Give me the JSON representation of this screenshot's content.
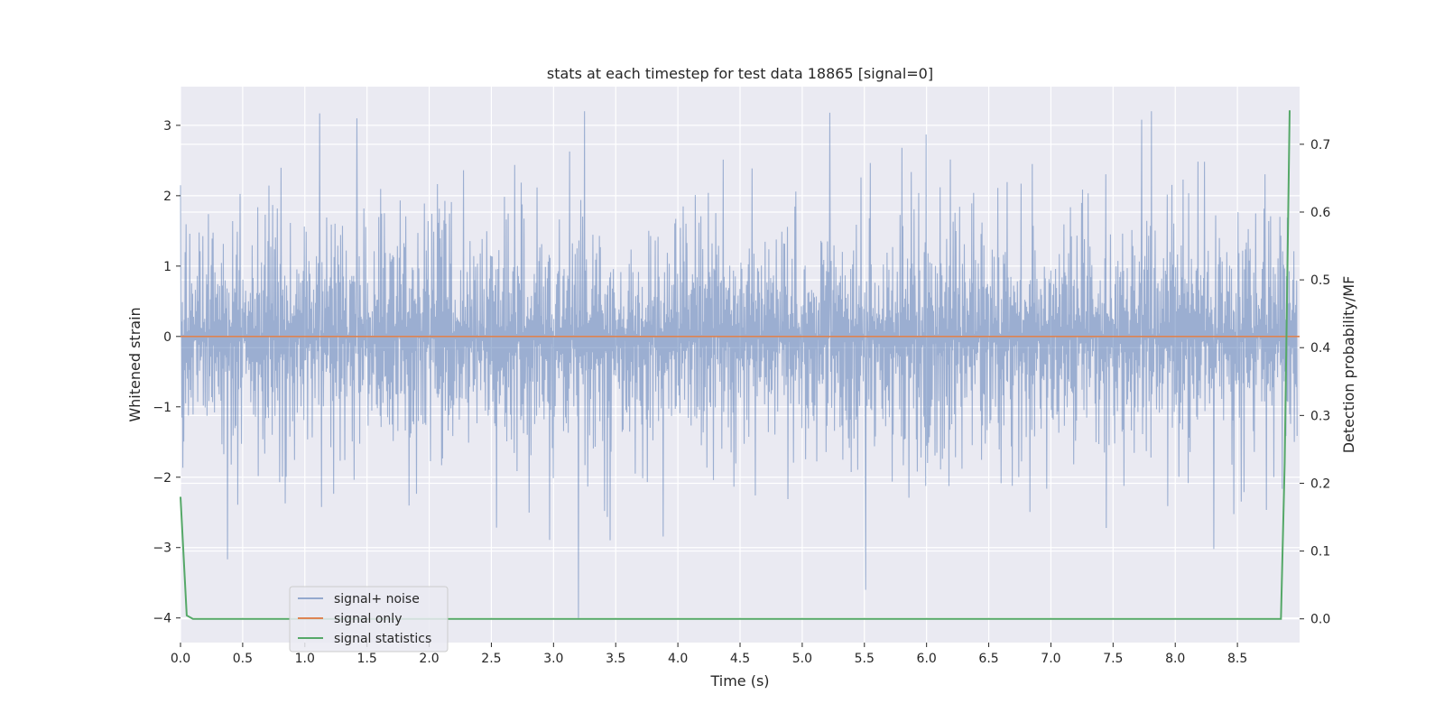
{
  "chart_data": {
    "type": "line",
    "title": "stats at each timestep for test data 18865 [signal=0]",
    "xlabel": "Time (s)",
    "ylabel": "Whitened strain",
    "y2label": "Detection probability/MF",
    "xlim": [
      0.0,
      9.0
    ],
    "ylim": [
      -4.35,
      3.55
    ],
    "y2lim": [
      -0.035,
      0.785
    ],
    "x_ticks": [
      0.0,
      0.5,
      1.0,
      1.5,
      2.0,
      2.5,
      3.0,
      3.5,
      4.0,
      4.5,
      5.0,
      5.5,
      6.0,
      6.5,
      7.0,
      7.5,
      8.0,
      8.5
    ],
    "x_tick_labels": [
      "0.0",
      "0.5",
      "1.0",
      "1.5",
      "2.0",
      "2.5",
      "3.0",
      "3.5",
      "4.0",
      "4.5",
      "5.0",
      "5.5",
      "6.0",
      "6.5",
      "7.0",
      "7.5",
      "8.0",
      "8.5"
    ],
    "y_ticks": [
      -4,
      -3,
      -2,
      -1,
      0,
      1,
      2,
      3
    ],
    "y_tick_labels": [
      "−4",
      "−3",
      "−2",
      "−1",
      "0",
      "1",
      "2",
      "3"
    ],
    "y2_ticks": [
      0.0,
      0.1,
      0.2,
      0.3,
      0.4,
      0.5,
      0.6,
      0.7
    ],
    "y2_tick_labels": [
      "0.0",
      "0.1",
      "0.2",
      "0.3",
      "0.4",
      "0.5",
      "0.6",
      "0.7"
    ],
    "grid": true,
    "legend_position": "lower-left",
    "series": [
      {
        "name": "signal+ noise",
        "color": "#4c72b0",
        "axis": "left",
        "noise_envelope": {
          "typical_amplitude": 1.5,
          "max_peak": 3.2,
          "min_peak": -4.0
        },
        "peaks": [
          {
            "x": 1.12,
            "y": 3.17
          },
          {
            "x": 1.42,
            "y": 3.1
          },
          {
            "x": 3.25,
            "y": 3.2
          },
          {
            "x": 5.22,
            "y": 3.18
          },
          {
            "x": 7.73,
            "y": 3.08
          },
          {
            "x": 3.2,
            "y": -4.0
          },
          {
            "x": 5.51,
            "y": -3.6
          },
          {
            "x": 8.31,
            "y": -3.02
          }
        ]
      },
      {
        "name": "signal only",
        "color": "#dd8452",
        "axis": "left",
        "x": [
          0.0,
          9.0
        ],
        "y": [
          0.0,
          0.0
        ]
      },
      {
        "name": "signal statistics",
        "color": "#55a868",
        "axis": "right",
        "x": [
          0.0,
          0.05,
          0.1,
          0.15,
          1.0,
          2.0,
          3.0,
          4.0,
          5.0,
          6.0,
          7.0,
          8.0,
          8.85,
          8.88,
          8.92
        ],
        "y": [
          0.18,
          0.005,
          0.0,
          0.0,
          0.0,
          0.0,
          0.0,
          0.0,
          0.0,
          0.0,
          0.0,
          0.0,
          0.0,
          0.23,
          0.75
        ]
      }
    ]
  }
}
